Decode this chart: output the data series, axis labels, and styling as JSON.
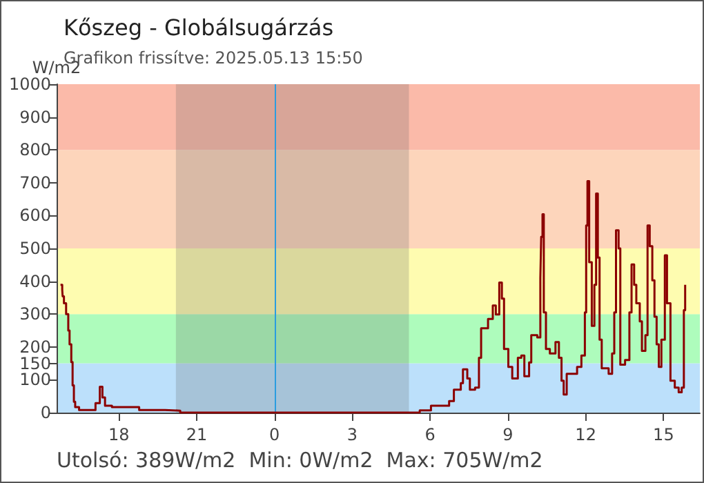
{
  "chart_data": {
    "type": "step",
    "title": "Kőszeg - Globálsugárzás",
    "subtitle": "Grafikon frissítve: 2025.05.13 15:50",
    "ylabel": "W/m2",
    "annotations": [
      "Utolsó: 389W/m2  Min: 0W/m2  Max: 705W/m2"
    ],
    "xlim": [
      "2025-05-12T15:36",
      "2025-05-13T16:24"
    ],
    "xticks": [
      {
        "value": "2025-05-12T18:00",
        "label": "18"
      },
      {
        "value": "2025-05-12T21:00",
        "label": "21"
      },
      {
        "value": "2025-05-13T00:00",
        "label": "0"
      },
      {
        "value": "2025-05-13T03:00",
        "label": "3"
      },
      {
        "value": "2025-05-13T06:00",
        "label": "6"
      },
      {
        "value": "2025-05-13T09:00",
        "label": "9"
      },
      {
        "value": "2025-05-13T12:00",
        "label": "12"
      },
      {
        "value": "2025-05-13T15:00",
        "label": "15"
      }
    ],
    "ylim": [
      0,
      1000
    ],
    "yticks": [
      0,
      100,
      150,
      200,
      300,
      400,
      500,
      600,
      700,
      800,
      900,
      1000
    ],
    "grid": false,
    "marker": "none",
    "line_style": "solid",
    "bands": [
      {
        "axis": "y",
        "from": 0,
        "to": 150,
        "color": "#bce0fb"
      },
      {
        "axis": "y",
        "from": 150,
        "to": 300,
        "color": "#aefcbc"
      },
      {
        "axis": "y",
        "from": 300,
        "to": 500,
        "color": "#fefcb0"
      },
      {
        "axis": "y",
        "from": 500,
        "to": 800,
        "color": "#fdd5bb"
      },
      {
        "axis": "y",
        "from": 800,
        "to": 1000,
        "color": "#fbbaa9"
      },
      {
        "axis": "x",
        "from": "2025-05-12T20:12",
        "to": "2025-05-13T05:11",
        "color": "#5a5a5a"
      }
    ],
    "ref_lines": [
      {
        "axis": "x",
        "value": "2025-05-13T00:00",
        "color": "#2a9de0"
      }
    ],
    "series": [
      {
        "color": "#8b0000",
        "x": [
          "2025-05-12T15:45",
          "2025-05-12T15:49",
          "2025-05-12T15:50",
          "2025-05-12T15:53",
          "2025-05-12T15:58",
          "2025-05-12T16:03",
          "2025-05-12T16:06",
          "2025-05-12T16:10",
          "2025-05-12T16:13",
          "2025-05-12T16:16",
          "2025-05-12T16:19",
          "2025-05-12T16:28",
          "2025-05-12T17:06",
          "2025-05-12T17:16",
          "2025-05-12T17:22",
          "2025-05-12T17:28",
          "2025-05-12T17:44",
          "2025-05-12T18:47",
          "2025-05-12T19:47",
          "2025-05-12T20:22",
          "2025-05-13T05:10",
          "2025-05-13T05:36",
          "2025-05-13T06:02",
          "2025-05-13T06:44",
          "2025-05-13T06:55",
          "2025-05-13T07:11",
          "2025-05-13T07:16",
          "2025-05-13T07:26",
          "2025-05-13T07:32",
          "2025-05-13T07:44",
          "2025-05-13T07:53",
          "2025-05-13T07:58",
          "2025-05-13T08:14",
          "2025-05-13T08:25",
          "2025-05-13T08:32",
          "2025-05-13T08:40",
          "2025-05-13T08:46",
          "2025-05-13T08:51",
          "2025-05-13T09:01",
          "2025-05-13T09:10",
          "2025-05-13T09:23",
          "2025-05-13T09:31",
          "2025-05-13T09:38",
          "2025-05-13T09:49",
          "2025-05-13T09:54",
          "2025-05-13T10:08",
          "2025-05-13T10:15",
          "2025-05-13T10:17",
          "2025-05-13T10:20",
          "2025-05-13T10:23",
          "2025-05-13T10:28",
          "2025-05-13T10:37",
          "2025-05-13T10:47",
          "2025-05-13T10:50",
          "2025-05-13T10:58",
          "2025-05-13T11:04",
          "2025-05-13T11:09",
          "2025-05-13T11:16",
          "2025-05-13T11:40",
          "2025-05-13T11:50",
          "2025-05-13T11:58",
          "2025-05-13T12:01",
          "2025-05-13T12:04",
          "2025-05-13T12:08",
          "2025-05-13T12:14",
          "2025-05-13T12:20",
          "2025-05-13T12:24",
          "2025-05-13T12:28",
          "2025-05-13T12:32",
          "2025-05-13T12:37",
          "2025-05-13T12:53",
          "2025-05-13T13:01",
          "2025-05-13T13:06",
          "2025-05-13T13:10",
          "2025-05-13T13:16",
          "2025-05-13T13:20",
          "2025-05-13T13:31",
          "2025-05-13T13:41",
          "2025-05-13T13:46",
          "2025-05-13T13:52",
          "2025-05-13T13:57",
          "2025-05-13T14:05",
          "2025-05-13T14:10",
          "2025-05-13T14:18",
          "2025-05-13T14:23",
          "2025-05-13T14:28",
          "2025-05-13T14:34",
          "2025-05-13T14:39",
          "2025-05-13T14:44",
          "2025-05-13T14:49",
          "2025-05-13T14:55",
          "2025-05-13T15:03",
          "2025-05-13T15:08",
          "2025-05-13T15:16",
          "2025-05-13T15:26",
          "2025-05-13T15:35",
          "2025-05-13T15:42",
          "2025-05-13T15:47",
          "2025-05-13T15:50"
        ],
        "values": [
          389,
          375,
          354,
          333,
          300,
          250,
          208,
          154,
          83,
          33,
          17,
          8,
          29,
          79,
          46,
          21,
          17,
          8,
          6,
          0,
          0,
          7,
          21,
          35,
          70,
          90,
          132,
          104,
          70,
          76,
          167,
          257,
          285,
          326,
          299,
          396,
          347,
          194,
          139,
          104,
          167,
          174,
          111,
          153,
          236,
          229,
          410,
          535,
          604,
          305,
          194,
          180,
          180,
          215,
          167,
          97,
          55,
          118,
          139,
          174,
          305,
          570,
          705,
          458,
          264,
          389,
          667,
          472,
          222,
          135,
          118,
          180,
          305,
          555,
          500,
          146,
          160,
          305,
          451,
          389,
          333,
          278,
          188,
          236,
          570,
          507,
          403,
          292,
          208,
          139,
          222,
          479,
          333,
          97,
          76,
          62,
          76,
          312,
          389
        ]
      }
    ]
  }
}
